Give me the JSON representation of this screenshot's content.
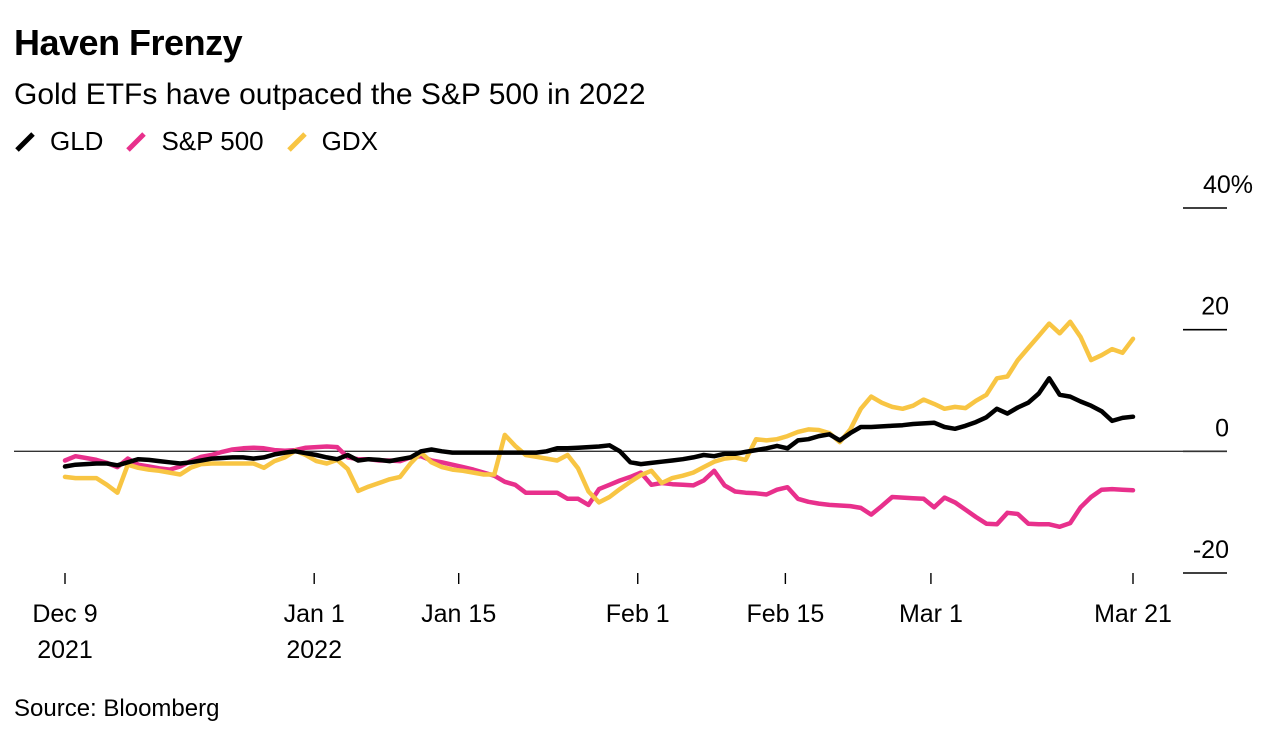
{
  "chart_data": {
    "type": "line",
    "title": "Haven Frenzy",
    "subtitle": "Gold ETFs have outpaced the S&P 500 in 2022",
    "source": "Source: Bloomberg",
    "xlabel": "",
    "ylabel": "",
    "ylim": [
      -20,
      40
    ],
    "grid": false,
    "legend_position": "top-left",
    "y_ticks": [
      {
        "value": 40,
        "label": "40%"
      },
      {
        "value": 20,
        "label": "20"
      },
      {
        "value": 0,
        "label": "0"
      },
      {
        "value": -20,
        "label": "-20"
      }
    ],
    "x_ticks": [
      {
        "day": 0,
        "label": "Dec 9",
        "sublabel": "2021"
      },
      {
        "day": 23.8,
        "label": "Jan 1",
        "sublabel": "2022"
      },
      {
        "day": 37.6,
        "label": "Jan 15",
        "sublabel": ""
      },
      {
        "day": 54.7,
        "label": "Feb 1",
        "sublabel": ""
      },
      {
        "day": 68.8,
        "label": "Feb 15",
        "sublabel": ""
      },
      {
        "day": 82.7,
        "label": "Mar 1",
        "sublabel": ""
      },
      {
        "day": 102,
        "label": "Mar 21",
        "sublabel": ""
      }
    ],
    "x_domain_days": [
      0,
      102
    ],
    "x_start_date": "Dec 9 2021",
    "x": [
      0,
      1,
      2,
      3,
      4,
      5,
      6,
      7,
      8,
      9,
      10,
      11,
      12,
      13,
      14,
      15,
      16,
      17,
      18,
      19,
      20,
      21,
      22,
      23,
      24,
      25,
      26,
      27,
      28,
      29,
      30,
      31,
      32,
      33,
      34,
      35,
      36,
      37,
      38,
      39,
      40,
      41,
      42,
      43,
      44,
      45,
      46,
      47,
      48,
      49,
      50,
      51,
      52,
      53,
      54,
      55,
      56,
      57,
      58,
      59,
      60,
      61,
      62,
      63,
      64,
      65,
      66,
      67,
      68,
      69,
      70,
      71,
      72,
      73,
      74,
      75,
      76,
      77,
      78,
      79,
      80,
      81,
      82,
      83,
      84,
      85,
      86,
      87,
      88,
      89,
      90,
      91,
      92,
      93,
      94,
      95,
      96,
      97,
      98,
      99,
      100,
      101,
      102
    ],
    "series": [
      {
        "name": "GLD",
        "color": "#000000",
        "values": [
          -2.5,
          -2.2,
          -2.1,
          -2.0,
          -2.0,
          -2.3,
          -1.8,
          -1.3,
          -1.4,
          -1.6,
          -1.8,
          -2.0,
          -1.8,
          -1.5,
          -1.2,
          -1.1,
          -1.0,
          -1.0,
          -1.2,
          -1.0,
          -0.5,
          -0.2,
          0.0,
          -0.3,
          -0.6,
          -1.0,
          -1.3,
          -0.6,
          -1.5,
          -1.3,
          -1.4,
          -1.6,
          -1.3,
          -1.0,
          0.0,
          0.3,
          0.0,
          -0.2,
          -0.2,
          -0.2,
          -0.2,
          -0.2,
          -0.2,
          -0.2,
          -0.2,
          -0.2,
          0.0,
          0.5,
          0.5,
          0.6,
          0.7,
          0.8,
          1.0,
          0.0,
          -1.8,
          -2.1,
          -1.9,
          -1.7,
          -1.5,
          -1.3,
          -1.0,
          -0.6,
          -0.8,
          -0.4,
          -0.4,
          -0.1,
          0.2,
          0.5,
          0.9,
          0.5,
          1.8,
          2.0,
          2.5,
          2.8,
          1.8,
          3.0,
          4.0,
          4.0,
          4.1,
          4.2,
          4.3,
          4.5,
          4.6,
          4.7,
          4.0,
          3.7,
          4.2,
          4.8,
          5.6,
          7.0,
          6.2,
          7.2,
          8.0,
          9.5,
          12.0,
          9.3,
          9.0,
          8.2,
          7.5,
          6.6,
          5.0,
          5.5,
          5.7
        ]
      },
      {
        "name": "S&P 500",
        "color": "#E8308C",
        "values": [
          -1.5,
          -0.8,
          -1.1,
          -1.4,
          -1.9,
          -2.6,
          -1.2,
          -2.2,
          -2.5,
          -2.8,
          -3.0,
          -2.5,
          -1.6,
          -0.9,
          -0.6,
          -0.1,
          0.3,
          0.5,
          0.6,
          0.5,
          0.2,
          0.1,
          0.2,
          0.6,
          0.7,
          0.8,
          0.7,
          -1.0,
          -1.3,
          -1.3,
          -1.5,
          -1.5,
          -1.6,
          -1.0,
          -0.8,
          -1.5,
          -1.8,
          -2.2,
          -2.6,
          -3.0,
          -3.5,
          -4.0,
          -5.0,
          -5.5,
          -6.8,
          -6.8,
          -6.8,
          -6.8,
          -7.8,
          -7.8,
          -8.8,
          -6.2,
          -5.5,
          -4.8,
          -4.2,
          -3.5,
          -5.5,
          -5.2,
          -5.4,
          -5.5,
          -5.6,
          -4.8,
          -3.2,
          -5.6,
          -6.6,
          -6.8,
          -6.9,
          -7.1,
          -6.3,
          -5.9,
          -7.8,
          -8.3,
          -8.6,
          -8.8,
          -8.9,
          -9.0,
          -9.3,
          -10.4,
          -9.0,
          -7.5,
          -7.6,
          -7.7,
          -7.8,
          -9.2,
          -7.6,
          -8.4,
          -9.6,
          -10.8,
          -11.9,
          -12.0,
          -10.1,
          -10.3,
          -11.9,
          -12.0,
          -12.0,
          -12.4,
          -11.8,
          -9.2,
          -7.5,
          -6.3,
          -6.2,
          -6.3,
          -6.4
        ]
      },
      {
        "name": "GDX",
        "color": "#F8C543",
        "values": [
          -4.2,
          -4.4,
          -4.4,
          -4.4,
          -5.5,
          -6.8,
          -2.2,
          -2.7,
          -3.0,
          -3.2,
          -3.5,
          -3.8,
          -2.7,
          -2.1,
          -2.0,
          -2.0,
          -2.0,
          -2.0,
          -2.0,
          -2.7,
          -1.6,
          -1.0,
          0.1,
          -0.6,
          -1.6,
          -2.0,
          -1.4,
          -2.9,
          -6.5,
          -5.8,
          -5.2,
          -4.6,
          -4.2,
          -2.0,
          -0.2,
          -1.8,
          -2.6,
          -3.0,
          -3.2,
          -3.5,
          -3.8,
          -3.8,
          2.7,
          0.9,
          -0.6,
          -0.9,
          -1.2,
          -1.5,
          -0.6,
          -2.8,
          -6.6,
          -8.4,
          -7.5,
          -6.2,
          -5.0,
          -3.9,
          -3.2,
          -5.2,
          -4.4,
          -4.0,
          -3.5,
          -2.6,
          -1.7,
          -1.2,
          -1.0,
          -1.4,
          2.0,
          1.8,
          2.0,
          2.5,
          3.2,
          3.6,
          3.5,
          3.0,
          1.5,
          3.6,
          7.0,
          9.0,
          8.0,
          7.3,
          7.0,
          7.5,
          8.5,
          7.8,
          7.0,
          7.3,
          7.1,
          8.3,
          9.3,
          12.0,
          12.3,
          15.0,
          17.0,
          19.0,
          21.0,
          19.4,
          21.3,
          18.8,
          15.0,
          15.8,
          16.8,
          16.2,
          18.5
        ]
      }
    ]
  }
}
